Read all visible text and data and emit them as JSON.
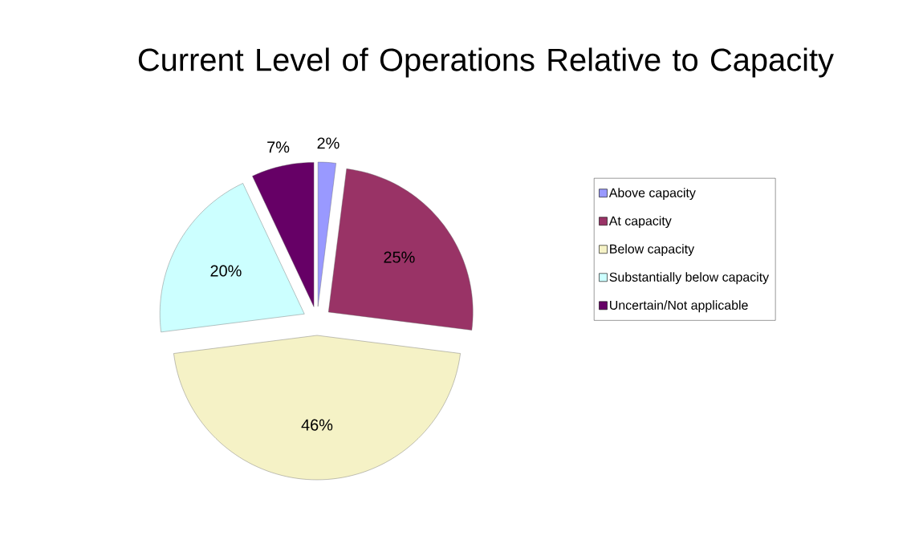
{
  "chart_data": {
    "type": "pie",
    "title": "Current Level of Operations Relative to Capacity",
    "categories": [
      "Above capacity",
      "At capacity",
      "Below capacity",
      "Substantially below capacity",
      "Uncertain/Not applicable"
    ],
    "values": [
      2,
      25,
      46,
      20,
      7
    ],
    "colors": [
      "#9999ff",
      "#993366",
      "#f5f2c6",
      "#ccffff",
      "#660066"
    ],
    "value_labels": [
      "2%",
      "25%",
      "46%",
      "20%",
      "7%"
    ],
    "legend": "right"
  }
}
